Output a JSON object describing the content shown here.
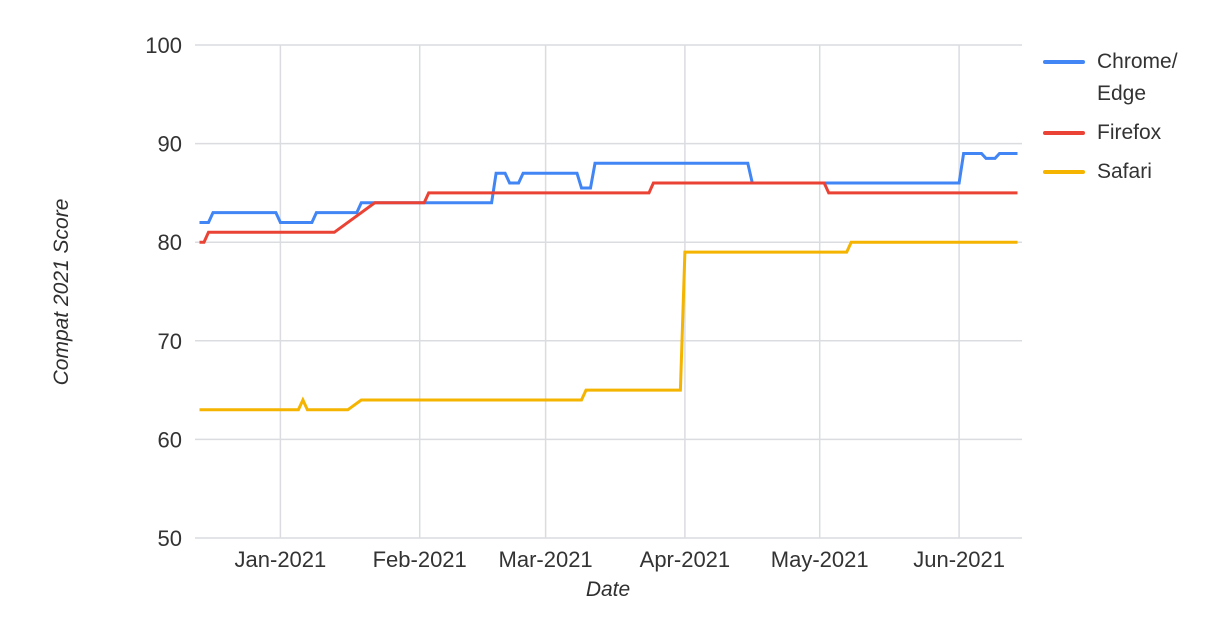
{
  "style": {
    "background_color": "#FFFFFF",
    "gridline_color": "#DADCE0",
    "text_color": "#333333"
  },
  "chart_data": {
    "type": "line",
    "title": "",
    "xlabel": "Date",
    "ylabel": "Compat 2021 Score",
    "ylim": [
      50,
      100
    ],
    "y_ticks": [
      50,
      60,
      70,
      80,
      90,
      100
    ],
    "x_domain": [
      "2020-12-13",
      "2021-06-15"
    ],
    "x_ticks": [
      {
        "date": "2021-01-01",
        "label": "Jan-2021"
      },
      {
        "date": "2021-02-01",
        "label": "Feb-2021"
      },
      {
        "date": "2021-03-01",
        "label": "Mar-2021"
      },
      {
        "date": "2021-04-01",
        "label": "Apr-2021"
      },
      {
        "date": "2021-05-01",
        "label": "May-2021"
      },
      {
        "date": "2021-06-01",
        "label": "Jun-2021"
      }
    ],
    "grid": true,
    "legend_position": "top-right",
    "series": [
      {
        "name": "Chrome/Edge",
        "legend_label": "Chrome/\nEdge",
        "color": "#4285F4",
        "points": [
          [
            "2020-12-14",
            82
          ],
          [
            "2020-12-16",
            82
          ],
          [
            "2020-12-17",
            83
          ],
          [
            "2020-12-31",
            83
          ],
          [
            "2021-01-01",
            82
          ],
          [
            "2021-01-08",
            82
          ],
          [
            "2021-01-09",
            83
          ],
          [
            "2021-01-18",
            83
          ],
          [
            "2021-01-19",
            84
          ],
          [
            "2021-02-17",
            84
          ],
          [
            "2021-02-18",
            87
          ],
          [
            "2021-02-20",
            87
          ],
          [
            "2021-02-21",
            86
          ],
          [
            "2021-02-23",
            86
          ],
          [
            "2021-02-24",
            87
          ],
          [
            "2021-03-08",
            87
          ],
          [
            "2021-03-09",
            85.5
          ],
          [
            "2021-03-11",
            85.5
          ],
          [
            "2021-03-12",
            88
          ],
          [
            "2021-04-15",
            88
          ],
          [
            "2021-04-16",
            86
          ],
          [
            "2021-06-01",
            86
          ],
          [
            "2021-06-02",
            89
          ],
          [
            "2021-06-06",
            89
          ],
          [
            "2021-06-07",
            88.5
          ],
          [
            "2021-06-09",
            88.5
          ],
          [
            "2021-06-10",
            89
          ],
          [
            "2021-06-14",
            89
          ]
        ]
      },
      {
        "name": "Firefox",
        "legend_label": "Firefox",
        "color": "#EA4335",
        "points": [
          [
            "2020-12-14",
            80
          ],
          [
            "2020-12-15",
            80
          ],
          [
            "2020-12-16",
            81
          ],
          [
            "2021-01-13",
            81
          ],
          [
            "2021-01-22",
            84
          ],
          [
            "2021-02-02",
            84
          ],
          [
            "2021-02-03",
            85
          ],
          [
            "2021-03-24",
            85
          ],
          [
            "2021-03-25",
            86
          ],
          [
            "2021-05-02",
            86
          ],
          [
            "2021-05-03",
            85
          ],
          [
            "2021-06-14",
            85
          ]
        ]
      },
      {
        "name": "Safari",
        "legend_label": "Safari",
        "color": "#F4B400",
        "points": [
          [
            "2020-12-14",
            63
          ],
          [
            "2021-01-05",
            63
          ],
          [
            "2021-01-06",
            64
          ],
          [
            "2021-01-07",
            63
          ],
          [
            "2021-01-16",
            63
          ],
          [
            "2021-01-19",
            64
          ],
          [
            "2021-03-09",
            64
          ],
          [
            "2021-03-10",
            65
          ],
          [
            "2021-03-31",
            65
          ],
          [
            "2021-04-01",
            79
          ],
          [
            "2021-05-07",
            79
          ],
          [
            "2021-05-08",
            80
          ],
          [
            "2021-06-14",
            80
          ]
        ]
      }
    ]
  }
}
